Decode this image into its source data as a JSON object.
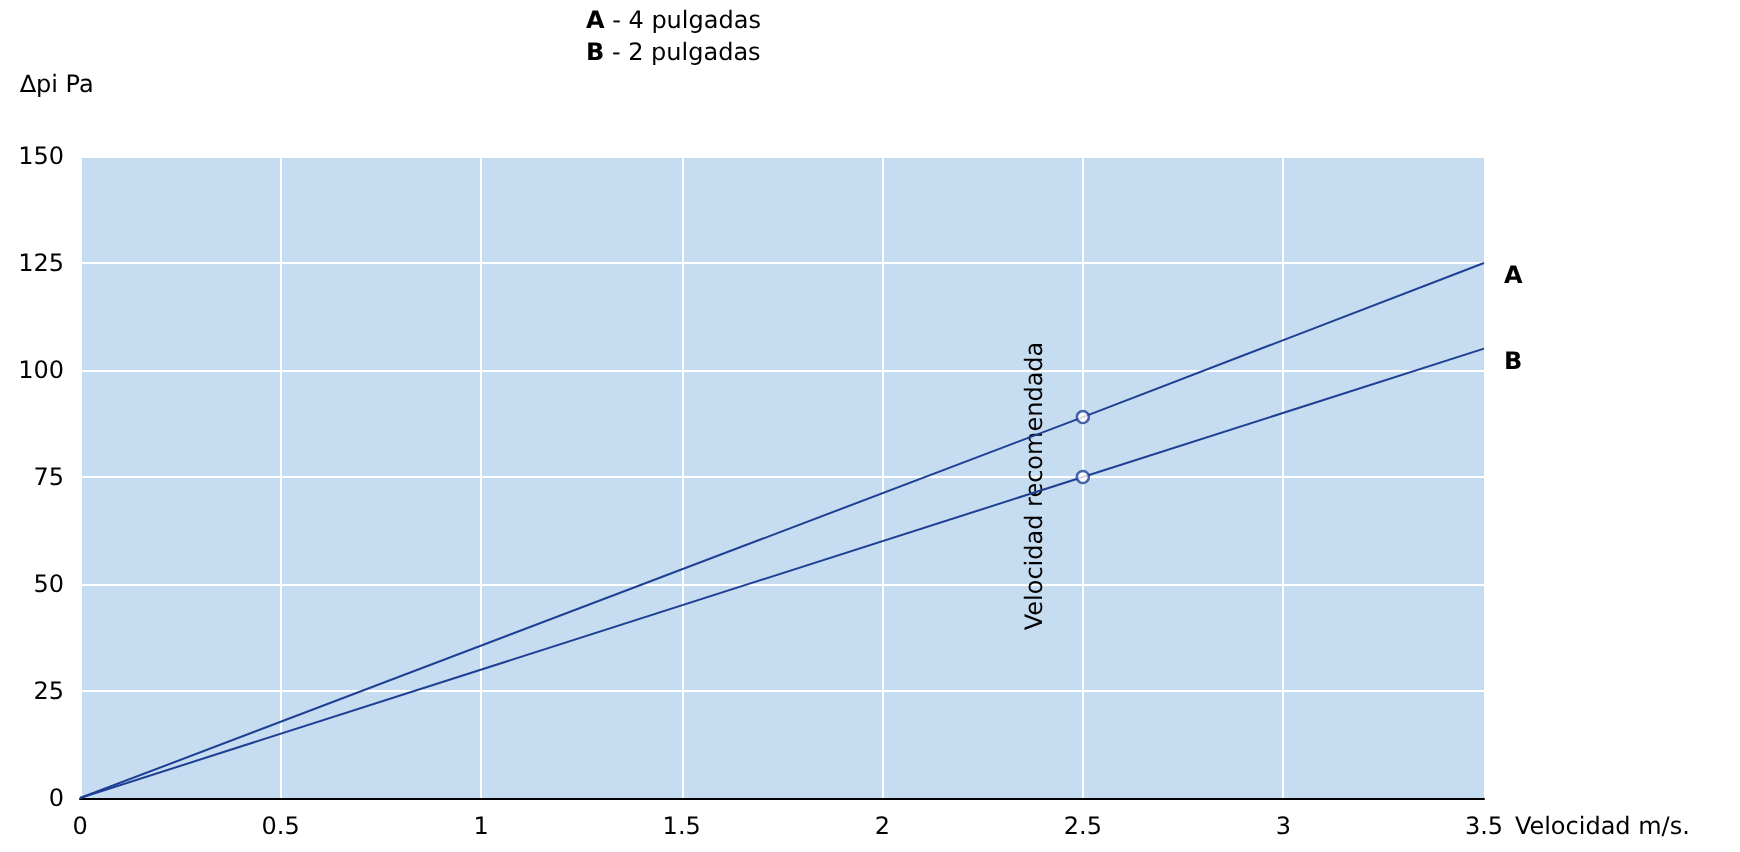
{
  "chart_data": {
    "type": "line",
    "xlabel": "Velocidad m/s.",
    "ylabel": "∆pi Pa",
    "xlim": [
      0,
      3.5
    ],
    "xticks": [
      0,
      0.5,
      1,
      1.5,
      2,
      2.5,
      3,
      3.5
    ],
    "ylim": [
      0,
      150
    ],
    "yticks": [
      0,
      25,
      50,
      75,
      100,
      125,
      150
    ],
    "grid": true,
    "legend": false,
    "line_style": "solid",
    "series": [
      {
        "name": "A",
        "color": "#1f3f93",
        "x": [
          0,
          2.5,
          3.5
        ],
        "values": [
          0,
          89,
          125
        ]
      },
      {
        "name": "B",
        "color": "#1f3f93",
        "x": [
          0,
          2.5,
          3.5
        ],
        "values": [
          0,
          75,
          105
        ]
      },
      {
        "type": "scatter",
        "color": "#1f3f93",
        "marker": "circle",
        "x": [
          2.5,
          2.5
        ],
        "values": [
          89,
          75
        ]
      }
    ],
    "annotations": [
      "Velocidad recomendada",
      "A - 4 pulgadas",
      "B - 2 pulgadas"
    ]
  }
}
